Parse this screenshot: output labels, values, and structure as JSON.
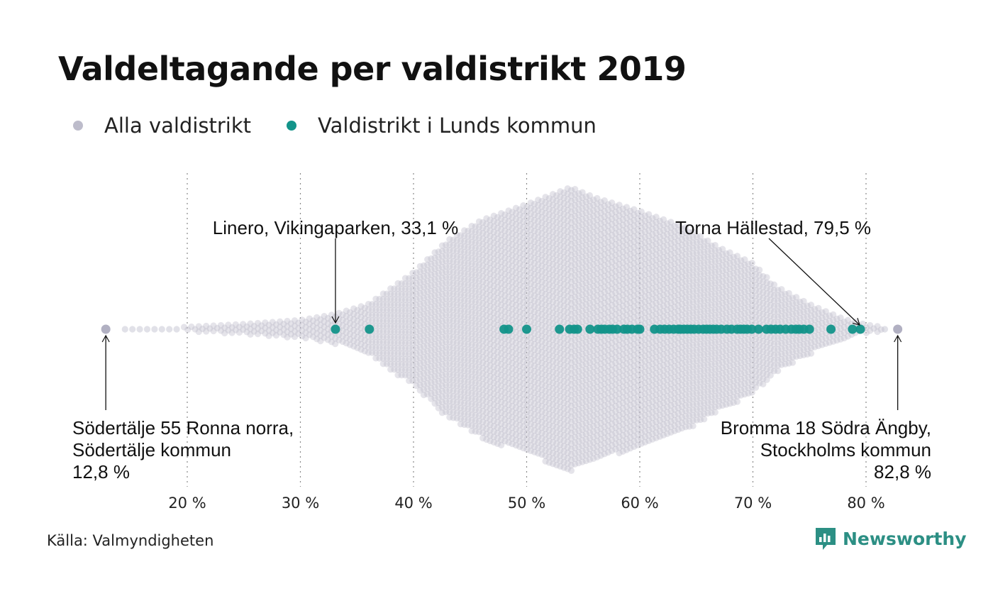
{
  "title": "Valdeltagande per valdistrikt 2019",
  "legend": [
    {
      "label": "Alla valdistrikt",
      "color": "#bdbccb"
    },
    {
      "label": "Valdistrikt i Lunds kommun",
      "color": "#13948a"
    }
  ],
  "source": "Källa: Valmyndigheten",
  "brand": {
    "name": "Newsworthy",
    "color": "#2c8f84",
    "icon": "bar-chart-bubble-icon"
  },
  "colors": {
    "all": "#bdbccb",
    "highlight": "#13948a",
    "text": "#111111",
    "grid": "#8a8a8a"
  },
  "chart_data": {
    "type": "scatter",
    "title": "Valdeltagande per valdistrikt 2019",
    "xlabel": "",
    "ylabel": "",
    "xlim": [
      11,
      85
    ],
    "x_ticks": [
      20,
      30,
      40,
      50,
      60,
      70,
      80
    ],
    "x_tick_labels": [
      "20 %",
      "30 %",
      "40 %",
      "50 %",
      "60 %",
      "70 %",
      "80 %"
    ],
    "grid": "vertical dotted",
    "series": [
      {
        "name": "Alla valdistrikt",
        "color": "#bdbccb",
        "distribution": {
          "min": 12.8,
          "max": 82.8,
          "mode": 53.9,
          "profile_x": [
            12.8,
            15,
            20,
            25,
            30,
            33,
            36,
            40,
            43,
            46,
            50,
            53.9,
            56,
            60,
            64,
            67,
            70,
            72,
            75,
            78,
            80,
            82.8
          ],
          "profile_halfwidth": [
            0,
            0,
            0.2,
            0.45,
            0.8,
            1.3,
            2.2,
            5.0,
            7.8,
            9.6,
            11.0,
            12.5,
            11.6,
            10.4,
            9.0,
            7.2,
            5.8,
            3.8,
            2.2,
            0.9,
            0.4,
            0
          ]
        }
      },
      {
        "name": "Valdistrikt i Lunds kommun",
        "color": "#13948a",
        "x": [
          33.1,
          36.1,
          48.0,
          48.4,
          50.0,
          52.9,
          53.8,
          54.2,
          54.5,
          55.6,
          56.3,
          56.6,
          56.9,
          57.3,
          57.6,
          58.0,
          58.6,
          58.9,
          59.3,
          59.8,
          60.0,
          61.3,
          61.8,
          62.2,
          62.6,
          63.0,
          63.4,
          63.6,
          63.9,
          64.2,
          64.5,
          64.8,
          65.2,
          65.6,
          65.9,
          66.2,
          66.5,
          66.8,
          67.2,
          67.7,
          68.1,
          68.6,
          68.9,
          69.2,
          69.5,
          69.9,
          70.5,
          71.2,
          71.6,
          72.0,
          72.4,
          72.9,
          73.4,
          73.8,
          74.1,
          74.5,
          75.0,
          76.9,
          78.8,
          79.5
        ]
      }
    ],
    "annotations": [
      {
        "text": [
          "Linero, Vikingaparken, 33,1 %"
        ],
        "x": 33.1,
        "placement": "above",
        "align": "center"
      },
      {
        "text": [
          "Torna Hällestad, 79,5 %"
        ],
        "x": 79.5,
        "placement": "above-left",
        "align": "right"
      },
      {
        "text": [
          "Södertälje 55 Ronna norra,",
          "Södertälje kommun",
          "12,8 %"
        ],
        "x": 12.8,
        "placement": "below",
        "align": "left"
      },
      {
        "text": [
          "Bromma 18 Södra Ängby,",
          "Stockholms kommun",
          "82,8 %"
        ],
        "x": 82.8,
        "placement": "below",
        "align": "right"
      }
    ]
  }
}
